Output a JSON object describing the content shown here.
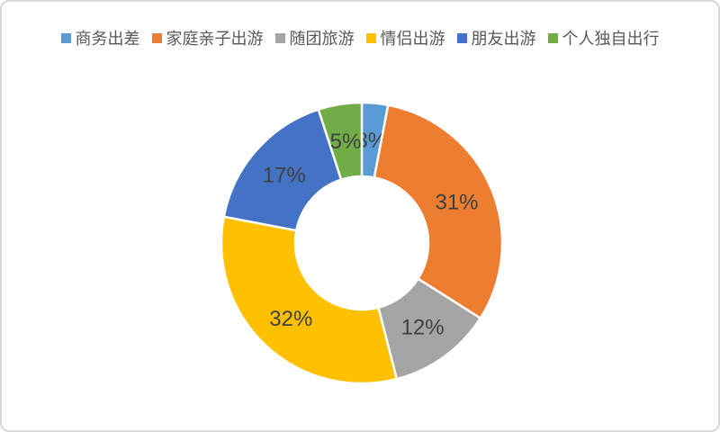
{
  "card": {
    "background": "#ffffff",
    "border_color": "#d9d9d9"
  },
  "chart_data": {
    "type": "pie",
    "subtype": "donut",
    "title": "",
    "legend_position": "top",
    "direction": "clockwise",
    "start_angle_deg": 0,
    "hole_ratio": 0.475,
    "gap_color": "#ffffff",
    "categories": [
      "商务出差",
      "家庭亲子出游",
      "随团旅游",
      "情侣出游",
      "朋友出游",
      "个人独自出行"
    ],
    "values": [
      3,
      31,
      12,
      32,
      17,
      5
    ],
    "data_labels": [
      "3%",
      "31%",
      "12%",
      "32%",
      "17%",
      "5%"
    ],
    "colors": [
      "#5B9BD5",
      "#ED7D31",
      "#A5A5A5",
      "#FFC000",
      "#4472C4",
      "#70AD47"
    ],
    "label_color": "#404040",
    "legend_text_color": "#595959"
  }
}
